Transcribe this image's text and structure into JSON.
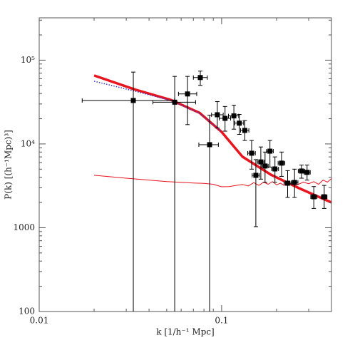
{
  "chart_data": {
    "type": "line",
    "x_label": "k [1/h⁻¹ Mpc]",
    "y_label": "P(k) [(h⁻¹Mpc)³]",
    "xscale": "log",
    "yscale": "log",
    "xlim": [
      0.01,
      0.4
    ],
    "ylim": [
      100,
      320000
    ],
    "xticks": [
      0.01,
      0.1
    ],
    "yticks": [
      100,
      1000,
      {
        "value": 10000,
        "label": "10⁴"
      },
      {
        "value": 100000,
        "label": "10⁵"
      }
    ],
    "series": [
      {
        "color": "#e8141e",
        "width": 3.5,
        "dash": "none",
        "x": [
          0.02,
          0.0337,
          0.0527,
          0.0757,
          0.1,
          0.13,
          0.186,
          0.267,
          0.4
        ],
        "values": [
          65600,
          44400,
          33500,
          23500,
          13900,
          7050,
          4300,
          2950,
          2000
        ]
      },
      {
        "color": "#3a3ac8",
        "width": 1.5,
        "dash": "1.5,2",
        "x": [
          0.02,
          0.0337,
          0.0527,
          0.0757,
          0.1
        ],
        "values": [
          56000,
          42500,
          33000,
          23300,
          13900
        ]
      },
      {
        "color": "#e8141e",
        "width": 1,
        "dash": "none",
        "x": [
          0.02,
          0.03,
          0.04,
          0.05,
          0.06,
          0.07,
          0.08,
          0.09,
          0.1,
          0.11,
          0.12,
          0.13,
          0.14,
          0.15,
          0.16,
          0.17,
          0.18,
          0.19,
          0.2,
          0.21,
          0.22,
          0.23,
          0.24,
          0.25,
          0.26,
          0.28,
          0.3,
          0.32,
          0.34,
          0.36,
          0.38,
          0.4
        ],
        "values": [
          4230,
          3900,
          3700,
          3550,
          3480,
          3420,
          3380,
          3300,
          3080,
          3100,
          3200,
          3280,
          3150,
          3450,
          3200,
          3500,
          3300,
          3550,
          3250,
          3400,
          3200,
          3500,
          3300,
          3450,
          3250,
          3500,
          3350,
          3550,
          3300,
          3700,
          3500,
          3850
        ]
      },
      {
        "color": "#000000",
        "marker": "square",
        "x": [
          0.0328,
          0.0553,
          0.065,
          0.0764,
          0.0859,
          0.0947,
          0.1044,
          0.1167,
          0.125,
          0.134,
          0.146,
          0.154,
          0.164,
          0.173,
          0.184,
          0.196,
          0.213,
          0.23,
          0.251,
          0.274,
          0.294,
          0.32,
          0.365
        ],
        "values": [
          33000,
          31500,
          39500,
          62000,
          9800,
          22300,
          20200,
          21600,
          17700,
          14500,
          7750,
          4220,
          6100,
          5450,
          8200,
          5030,
          5900,
          3400,
          3470,
          4750,
          4580,
          2340,
          2340
        ],
        "y_low": [
          50,
          50,
          17000,
          50000,
          50,
          15500,
          14200,
          15000,
          13000,
          11000,
          5000,
          1030,
          3800,
          3500,
          5300,
          3500,
          4100,
          2300,
          2300,
          3900,
          3700,
          1700,
          1700
        ],
        "y_high": [
          72000,
          64000,
          64000,
          74000,
          22000,
          32000,
          28000,
          29000,
          22500,
          19000,
          11000,
          6500,
          9200,
          8000,
          11000,
          7000,
          8000,
          4800,
          5000,
          5600,
          5600,
          3100,
          3200
        ],
        "x_low": [
          0.0172,
          0.042,
          0.058,
          0.07,
          0.075,
          0.088,
          0.097,
          0.109,
          0.118,
          0.127,
          0.139,
          0.147,
          0.157,
          0.166,
          0.176,
          0.188,
          0.204,
          0.22,
          0.241,
          0.263,
          0.283,
          0.308,
          0.352
        ],
        "x_high": [
          0.0552,
          0.072,
          0.073,
          0.0835,
          0.096,
          0.102,
          0.112,
          0.124,
          0.132,
          0.141,
          0.153,
          0.161,
          0.171,
          0.18,
          0.192,
          0.205,
          0.222,
          0.24,
          0.262,
          0.285,
          0.306,
          0.333,
          0.378
        ]
      }
    ]
  }
}
